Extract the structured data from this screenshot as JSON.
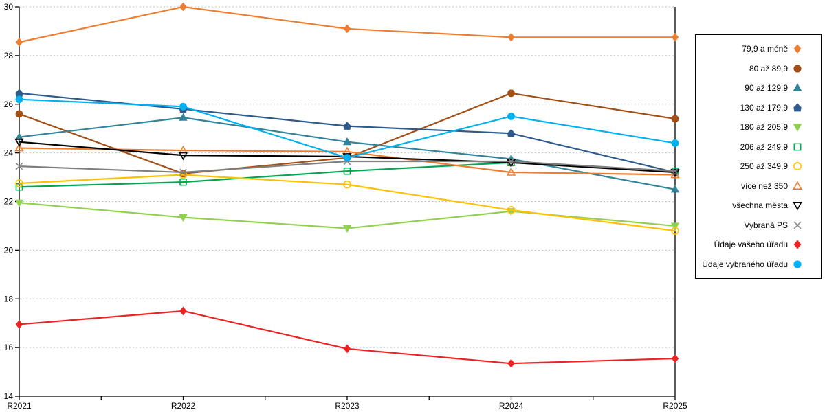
{
  "chart_data": {
    "type": "line",
    "title": "",
    "xlabel": "",
    "ylabel": "",
    "categories": [
      "R2021",
      "R2022",
      "R2023",
      "R2024",
      "R2025"
    ],
    "ylim": [
      14,
      30
    ],
    "yticks": [
      14,
      16,
      18,
      20,
      22,
      24,
      26,
      28,
      30
    ],
    "grid": "horizontal-dashed",
    "gridline_color": "#bfbfbf",
    "axis_color": "#000000",
    "legend_position": "right-box",
    "series": [
      {
        "name": "79,9 a méně",
        "color": "#ed7d31",
        "marker": "diamond",
        "fill": true,
        "values": [
          28.55,
          30.0,
          29.1,
          28.75,
          28.75
        ]
      },
      {
        "name": "80 až 89,9",
        "color": "#a35017",
        "marker": "circle",
        "fill": true,
        "values": [
          25.6,
          23.15,
          23.8,
          26.45,
          25.4
        ]
      },
      {
        "name": "90 až 129,9",
        "color": "#31849b",
        "marker": "triangle-up",
        "fill": true,
        "values": [
          24.65,
          25.45,
          24.45,
          23.75,
          22.5
        ]
      },
      {
        "name": "130 až 179,9",
        "color": "#2e5b8c",
        "marker": "pentagon",
        "fill": true,
        "values": [
          26.45,
          25.8,
          25.1,
          24.8,
          23.2
        ]
      },
      {
        "name": "180 až 205,9",
        "color": "#92d050",
        "marker": "triangle-down",
        "fill": true,
        "values": [
          21.95,
          21.35,
          20.9,
          21.6,
          21.0
        ]
      },
      {
        "name": "206 až 249,9",
        "color": "#00a651",
        "marker": "square",
        "fill": false,
        "values": [
          22.6,
          22.8,
          23.25,
          23.6,
          23.25
        ]
      },
      {
        "name": "250 až 349,9",
        "color": "#ffc000",
        "marker": "circle",
        "fill": false,
        "values": [
          22.75,
          23.1,
          22.7,
          21.65,
          20.8
        ]
      },
      {
        "name": "více než 350",
        "color": "#ed7d31",
        "marker": "triangle-up",
        "fill": false,
        "values": [
          24.2,
          24.1,
          24.05,
          23.2,
          23.1
        ]
      },
      {
        "name": "všechna města",
        "color": "#000000",
        "marker": "triangle-down",
        "fill": false,
        "values": [
          24.45,
          23.9,
          23.85,
          23.6,
          23.2
        ]
      },
      {
        "name": "Vybraná PS",
        "color": "#7f7f7f",
        "marker": "x-cross",
        "fill": false,
        "values": [
          23.45,
          23.2,
          23.65,
          23.65,
          23.25
        ]
      },
      {
        "name": "Údaje vašeho úřadu",
        "color": "#ee2222",
        "marker": "diamond",
        "fill": true,
        "values": [
          16.95,
          17.5,
          15.95,
          15.35,
          15.55
        ]
      },
      {
        "name": "Údaje vybraného úřadu",
        "color": "#00b0f0",
        "marker": "circle",
        "fill": true,
        "values": [
          26.2,
          25.9,
          23.8,
          25.5,
          24.4
        ]
      }
    ]
  }
}
